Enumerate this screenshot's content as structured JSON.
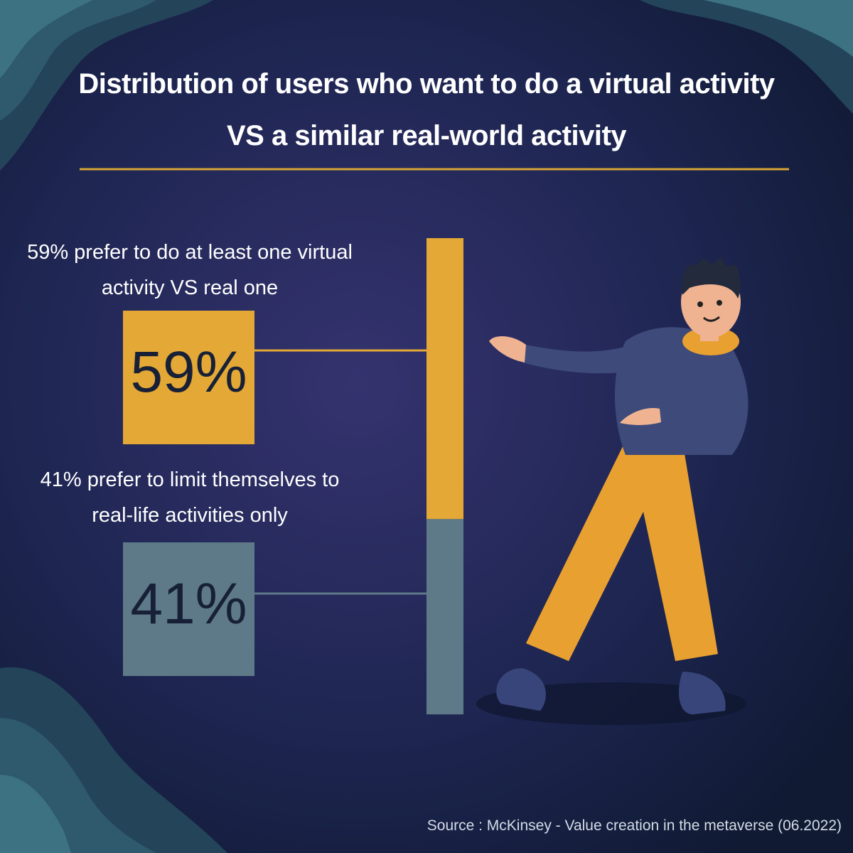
{
  "chart_data": {
    "type": "stacked-bar",
    "title": "Distribution of users who want to do a virtual activity VS a similar real-world activity",
    "labels": [
      "59% prefer to do at least one virtual activity VS real one",
      "41% prefer to limit themselves to real-life activities only"
    ],
    "values": [
      59,
      41
    ],
    "value_labels": [
      "59%",
      "41%"
    ],
    "colors": [
      "#e3a835",
      "#5e7a88"
    ],
    "source": "Source : McKinsey - Value creation in the metaverse (06.2022)"
  }
}
